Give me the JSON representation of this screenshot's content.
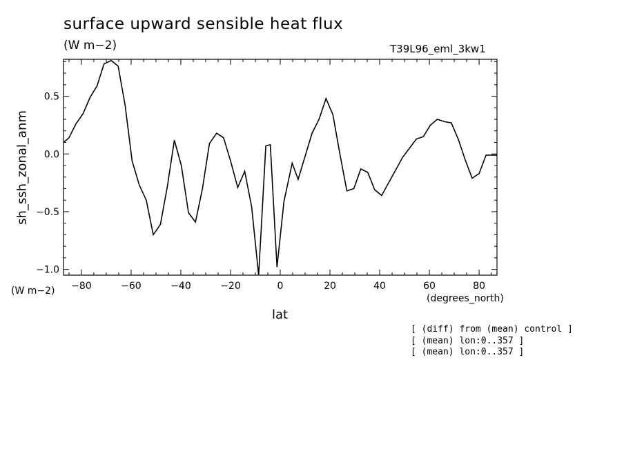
{
  "chart_data": {
    "type": "line",
    "title": "surface upward sensible heat flux",
    "units": "(W m−2)",
    "run_label": "T39L96_eml_3kw1",
    "ylabel": "sh_ssh_zonal_anm",
    "yunits": "(W m−2)",
    "xlabel": "lat",
    "xunits": "(degrees_north)",
    "xlim": [
      -87.2,
      87.2
    ],
    "ylim": [
      -1.05,
      0.82
    ],
    "xticks": [
      -80,
      -60,
      -40,
      -20,
      0,
      20,
      40,
      60,
      80
    ],
    "xtick_labels": [
      "−80",
      "−60",
      "−40",
      "−20",
      "0",
      "20",
      "40",
      "60",
      "80"
    ],
    "yticks": [
      -1.0,
      -0.5,
      0.0,
      0.5
    ],
    "ytick_labels": [
      "−1.0",
      "−0.5",
      "0.0",
      "0.5"
    ],
    "grid": false,
    "line_color": "#000000",
    "series": [
      {
        "x": [
          -87.2,
          -85.0,
          -82.2,
          -79.3,
          -76.5,
          -73.7,
          -70.9,
          -68.0,
          -65.2,
          -62.4,
          -59.6,
          -56.7,
          -53.9,
          -51.1,
          -48.2,
          -45.4,
          -42.6,
          -39.8,
          -36.9,
          -34.1,
          -31.3,
          -28.5,
          -25.6,
          -22.8,
          -20.0,
          -17.1,
          -14.3,
          -11.5,
          -8.7,
          -5.8,
          -4.0,
          -1.3,
          1.5,
          4.8,
          7.2,
          10.0,
          12.8,
          15.6,
          18.4,
          21.2,
          24.0,
          26.8,
          29.6,
          32.4,
          35.2,
          38.0,
          40.8,
          43.6,
          46.4,
          49.2,
          52.0,
          54.8,
          57.6,
          60.4,
          63.2,
          66.0,
          68.8,
          71.6,
          74.4,
          77.2,
          80.0,
          82.8,
          85.6,
          87.2
        ],
        "y": [
          0.1,
          0.14,
          0.26,
          0.35,
          0.49,
          0.59,
          0.78,
          0.81,
          0.76,
          0.42,
          -0.06,
          -0.27,
          -0.4,
          -0.7,
          -0.61,
          -0.28,
          0.12,
          -0.1,
          -0.51,
          -0.59,
          -0.3,
          0.09,
          0.18,
          0.14,
          -0.06,
          -0.29,
          -0.15,
          -0.46,
          -1.05,
          0.07,
          0.08,
          -0.98,
          -0.41,
          -0.08,
          -0.22,
          -0.02,
          0.18,
          0.3,
          0.48,
          0.34,
          0.0,
          -0.32,
          -0.3,
          -0.13,
          -0.16,
          -0.31,
          -0.36,
          -0.25,
          -0.14,
          -0.03,
          0.05,
          0.13,
          0.15,
          0.25,
          0.3,
          0.28,
          0.27,
          0.13,
          -0.05,
          -0.21,
          -0.17,
          -0.01,
          -0.01,
          -0.01
        ]
      }
    ]
  },
  "notes": [
    "[ (diff) from (mean) control ]",
    "[ (mean) lon:0..357 ]",
    "[ (mean) lon:0..357 ]"
  ]
}
